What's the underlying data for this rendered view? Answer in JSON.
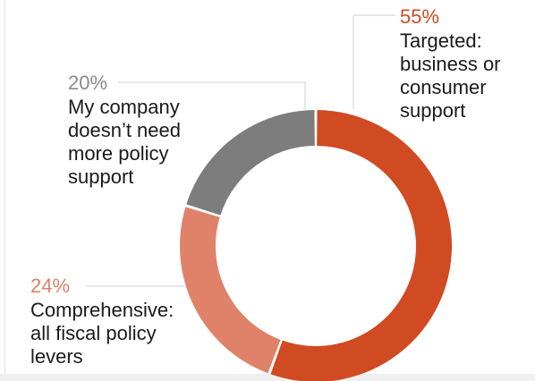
{
  "chart_data": {
    "type": "pie",
    "subtype": "donut",
    "slices": [
      {
        "label": "Targeted:\nbusiness or\nconsumer\nsupport",
        "value_label": "55%",
        "value": 55,
        "color": "#d04a22"
      },
      {
        "label": "Comprehensive:\nall fiscal policy\nlevers",
        "value_label": "24%",
        "value": 24,
        "color": "#e0826a"
      },
      {
        "label": "My company\ndoesn’t need\nmore policy\nsupport",
        "value_label": "20%",
        "value": 20,
        "color": "#7d7d7d"
      }
    ],
    "legend": "none",
    "leader_line_color": "#cfcfcf"
  }
}
